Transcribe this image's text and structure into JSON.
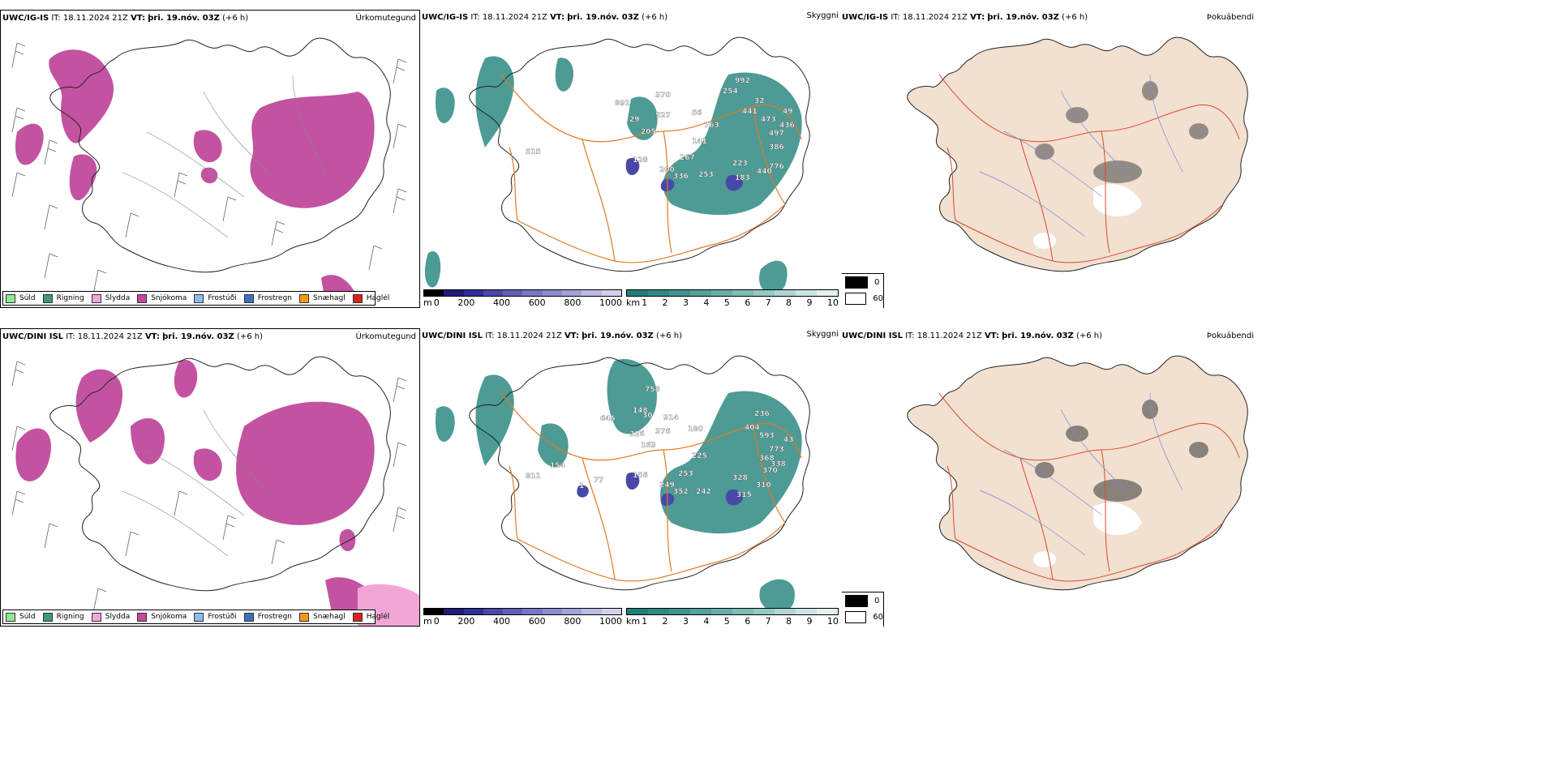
{
  "rows": [
    {
      "model": "UWC/IG-IS",
      "it_label": "IT:",
      "it_value": "18.11.2024 21Z",
      "vt_label": "VT:",
      "vt_value": "þri. 19.nóv. 03Z",
      "lead": "(+6 h)"
    },
    {
      "model": "UWC/DINI ISL",
      "it_label": "IT:",
      "it_value": "18.11.2024 21Z",
      "vt_label": "VT:",
      "vt_value": "þri. 19.nóv. 03Z",
      "lead": "(+6 h)"
    }
  ],
  "panel_titles": {
    "precip_type": "Úrkomutegund",
    "visibility": "Skyggni",
    "fog": "Þokuábendi"
  },
  "precip_legend": [
    {
      "label": "Súld",
      "color": "#8ee88e"
    },
    {
      "label": "Rigning",
      "color": "#3f9b6f"
    },
    {
      "label": "Slydda",
      "color": "#f2a6d6"
    },
    {
      "label": "Snjókoma",
      "color": "#c04a9d"
    },
    {
      "label": "Frostúði",
      "color": "#8cbcf0"
    },
    {
      "label": "Frostregn",
      "color": "#3b72c0"
    },
    {
      "label": "Snæhagl",
      "color": "#f09a1a"
    },
    {
      "label": "Haglél",
      "color": "#e02020"
    }
  ],
  "height_scale": {
    "unit": "m",
    "ticks": [
      "0",
      "200",
      "400",
      "600",
      "800",
      "1000"
    ],
    "colors": [
      "#000000",
      "#1c1c7a",
      "#2e2e99",
      "#4848aa",
      "#6060b8",
      "#7676c4",
      "#8c8cce",
      "#a2a2d8",
      "#babae2",
      "#d2d2ec"
    ]
  },
  "visibility_scale": {
    "unit": "km",
    "ticks": [
      "1",
      "2",
      "3",
      "4",
      "5",
      "6",
      "7",
      "8",
      "9",
      "10"
    ],
    "colors": [
      "#1f7f78",
      "#2e8a83",
      "#3f958e",
      "#52a19b",
      "#67aea8",
      "#7dbcb6",
      "#95c9c4",
      "#aed7d3",
      "#c8e5e2",
      "#e3f2f0"
    ]
  },
  "fog_legend": [
    {
      "label": "0",
      "color": "#000000"
    },
    {
      "label": "60",
      "color": "#ffffff"
    }
  ],
  "cloud_base_labels": {
    "row1": [
      "992",
      "254",
      "370",
      "891",
      "527",
      "29",
      "205",
      "56",
      "763",
      "32",
      "441",
      "473",
      "49",
      "436",
      "497",
      "515",
      "141",
      "386",
      "267",
      "128",
      "223",
      "200",
      "336",
      "253",
      "183",
      "440",
      "776"
    ],
    "row2": [
      "758",
      "148",
      "645",
      "30",
      "914",
      "226",
      "376",
      "180",
      "236",
      "404",
      "593",
      "773",
      "43",
      "163",
      "225",
      "368",
      "338",
      "154",
      "370",
      "811",
      "253",
      "156",
      "328",
      "1",
      "77",
      "249",
      "352",
      "242",
      "315",
      "310"
    ]
  }
}
